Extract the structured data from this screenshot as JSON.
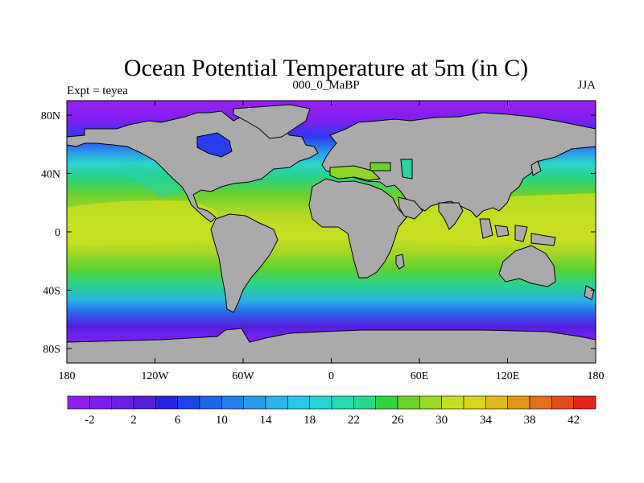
{
  "header": {
    "title": "Ocean Potential Temperature at 5m (in C)",
    "left": "Expt = teyea",
    "center": "000_0_MaBP",
    "right": "JJA"
  },
  "axes": {
    "y_ticks": [
      "80N",
      "40N",
      "0",
      "40S",
      "80S"
    ],
    "x_ticks": [
      "180",
      "120W",
      "60W",
      "0",
      "60E",
      "120E",
      "180"
    ],
    "x_range": [
      -180,
      180
    ],
    "y_range": [
      -90,
      90
    ]
  },
  "colorbar": {
    "labels": [
      "-2",
      "2",
      "6",
      "10",
      "14",
      "18",
      "22",
      "26",
      "30",
      "34",
      "38",
      "42"
    ],
    "levels_min": -4,
    "levels_max": 44,
    "colors": [
      "#8f1ff0",
      "#7a1ff0",
      "#6a1ee8",
      "#571ddd",
      "#2a21e6",
      "#1b44e8",
      "#1e64ea",
      "#2180ea",
      "#269bea",
      "#2bb3ec",
      "#27c7e8",
      "#23d6d6",
      "#22dcb1",
      "#26d98a",
      "#31d33a",
      "#6ad12c",
      "#9bd824",
      "#c6de22",
      "#d9d51a",
      "#e0b81a",
      "#e2951a",
      "#e3701a",
      "#e34c1a",
      "#e2241a"
    ]
  },
  "map": {
    "land_color": "#aaaaaa",
    "ocean_band_colors": [
      "#9a20f2",
      "#7b1ff0",
      "#2a3cf0",
      "#2a8eec",
      "#2ad3cc",
      "#2ad27d",
      "#6ed02c",
      "#b7da24"
    ]
  }
}
